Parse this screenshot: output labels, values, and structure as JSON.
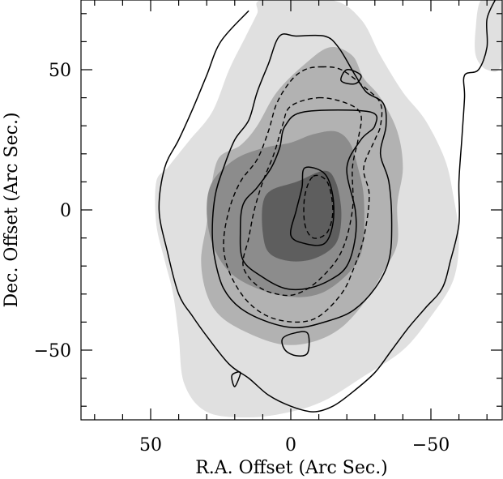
{
  "chart_data": {
    "type": "contour",
    "xlabel": "R.A. Offset (Arc Sec.)",
    "ylabel": "Dec. Offset (Arc Sec.)",
    "xlim": [
      75,
      -75
    ],
    "ylim": [
      -75,
      75
    ],
    "x_reversed": true,
    "x_ticks": [
      50,
      0,
      -50
    ],
    "x_tick_labels": [
      "50",
      "0",
      "−50"
    ],
    "y_ticks": [
      50,
      0,
      -50
    ],
    "y_tick_labels": [
      "50",
      "0",
      "−50"
    ],
    "grid": false,
    "colors": {
      "fill_level_1": "#e0e0e0",
      "fill_level_2": "#b2b2b2",
      "fill_level_3": "#8c8c8c",
      "fill_level_4": "#5e5e5e",
      "line": "#000000"
    },
    "filled_contours": [
      {
        "level": 1,
        "points": [
          [
            -14,
            75
          ],
          [
            -25,
            68
          ],
          [
            -32,
            55
          ],
          [
            -40,
            42
          ],
          [
            -48,
            32
          ],
          [
            -55,
            18
          ],
          [
            -58,
            5
          ],
          [
            -60,
            -10
          ],
          [
            -58,
            -25
          ],
          [
            -50,
            -38
          ],
          [
            -40,
            -50
          ],
          [
            -25,
            -60
          ],
          [
            -12,
            -68
          ],
          [
            0,
            -72
          ],
          [
            15,
            -74
          ],
          [
            30,
            -72
          ],
          [
            38,
            -62
          ],
          [
            40,
            -45
          ],
          [
            42,
            -30
          ],
          [
            45,
            -18
          ],
          [
            48,
            -5
          ],
          [
            48,
            10
          ],
          [
            44,
            15
          ],
          [
            40,
            20
          ],
          [
            36,
            25
          ],
          [
            28,
            35
          ],
          [
            22,
            50
          ],
          [
            16,
            62
          ],
          [
            12,
            70
          ],
          [
            10,
            75
          ]
        ],
        "note_x_max_visible": true
      },
      {
        "level": 1,
        "points": [
          [
            -68,
            75
          ],
          [
            -75,
            75
          ],
          [
            -75,
            52
          ],
          [
            -70,
            50
          ],
          [
            -66,
            55
          ],
          [
            -66,
            65
          ]
        ]
      },
      {
        "level": 2,
        "points": [
          [
            -14,
            58
          ],
          [
            -22,
            55
          ],
          [
            -26,
            47
          ],
          [
            -32,
            40
          ],
          [
            -38,
            28
          ],
          [
            -40,
            15
          ],
          [
            -38,
            2
          ],
          [
            -38,
            -12
          ],
          [
            -33,
            -22
          ],
          [
            -27,
            -32
          ],
          [
            -18,
            -42
          ],
          [
            -8,
            -47
          ],
          [
            3,
            -48
          ],
          [
            15,
            -44
          ],
          [
            25,
            -38
          ],
          [
            30,
            -30
          ],
          [
            32,
            -18
          ],
          [
            30,
            -5
          ],
          [
            29,
            3
          ],
          [
            26,
            18
          ],
          [
            18,
            23
          ],
          [
            12,
            30
          ],
          [
            5,
            42
          ],
          [
            -5,
            52
          ]
        ]
      },
      {
        "level": 3,
        "points": [
          [
            -16,
            28
          ],
          [
            -21,
            24
          ],
          [
            -24,
            15
          ],
          [
            -26,
            5
          ],
          [
            -26,
            -10
          ],
          [
            -24,
            -18
          ],
          [
            -18,
            -25
          ],
          [
            -10,
            -30
          ],
          [
            0,
            -31
          ],
          [
            12,
            -28
          ],
          [
            22,
            -22
          ],
          [
            28,
            -12
          ],
          [
            30,
            0
          ],
          [
            28,
            10
          ],
          [
            20,
            18
          ],
          [
            10,
            22
          ],
          [
            0,
            24
          ],
          [
            -8,
            27
          ]
        ]
      },
      {
        "level": 4,
        "points": [
          [
            -12,
            14
          ],
          [
            -16,
            10
          ],
          [
            -18,
            0
          ],
          [
            -17,
            -10
          ],
          [
            -13,
            -15
          ],
          [
            -6,
            -18
          ],
          [
            2,
            -18
          ],
          [
            8,
            -15
          ],
          [
            10,
            -8
          ],
          [
            10,
            2
          ],
          [
            7,
            7
          ],
          [
            -2,
            10
          ]
        ]
      }
    ],
    "solid_contours": [
      [
        [
          15,
          71
        ],
        [
          25,
          60
        ],
        [
          30,
          48
        ],
        [
          35,
          36
        ],
        [
          40,
          25
        ],
        [
          45,
          15
        ],
        [
          47,
          0
        ],
        [
          44,
          -15
        ],
        [
          40,
          -30
        ],
        [
          35,
          -38
        ],
        [
          30,
          -45
        ],
        [
          22,
          -55
        ],
        [
          15,
          -60
        ],
        [
          8,
          -66
        ],
        [
          0,
          -70
        ],
        [
          -8,
          -72
        ],
        [
          -15,
          -70
        ],
        [
          -22,
          -65
        ],
        [
          -30,
          -58
        ],
        [
          -36,
          -50
        ],
        [
          -42,
          -42
        ],
        [
          -48,
          -35
        ],
        [
          -54,
          -28
        ],
        [
          -57,
          -18
        ],
        [
          -60,
          -5
        ],
        [
          -60,
          10
        ],
        [
          -61,
          25
        ],
        [
          -62,
          40
        ],
        [
          -62,
          48
        ],
        [
          -67,
          50
        ],
        [
          -70,
          58
        ],
        [
          -70,
          68
        ],
        [
          -73,
          75
        ]
      ],
      [
        [
          -2,
          62
        ],
        [
          -12,
          62
        ],
        [
          -17,
          58
        ],
        [
          -23,
          48
        ],
        [
          -27,
          42
        ],
        [
          -33,
          38
        ],
        [
          -34,
          30
        ],
        [
          -32,
          20
        ],
        [
          -35,
          10
        ],
        [
          -36,
          -5
        ],
        [
          -35,
          -18
        ],
        [
          -30,
          -28
        ],
        [
          -22,
          -36
        ],
        [
          -12,
          -40
        ],
        [
          -2,
          -42
        ],
        [
          8,
          -40
        ],
        [
          18,
          -35
        ],
        [
          24,
          -28
        ],
        [
          27,
          -18
        ],
        [
          28,
          -8
        ],
        [
          27,
          5
        ],
        [
          24,
          15
        ],
        [
          20,
          25
        ],
        [
          15,
          32
        ],
        [
          12,
          42
        ],
        [
          8,
          52
        ],
        [
          4,
          62
        ]
      ],
      [
        [
          -5,
          35
        ],
        [
          -28,
          35
        ],
        [
          -30,
          30
        ],
        [
          -25,
          25
        ],
        [
          -20,
          15
        ],
        [
          -23,
          0
        ],
        [
          -23,
          -10
        ],
        [
          -20,
          -20
        ],
        [
          -14,
          -25
        ],
        [
          -6,
          -28
        ],
        [
          2,
          -28
        ],
        [
          10,
          -24
        ],
        [
          17,
          -18
        ],
        [
          18,
          -8
        ],
        [
          17,
          2
        ],
        [
          12,
          8
        ],
        [
          7,
          15
        ],
        [
          4,
          22
        ],
        [
          2,
          30
        ]
      ],
      [
        [
          -5,
          15
        ],
        [
          -12,
          13
        ],
        [
          -15,
          5
        ],
        [
          -15,
          -5
        ],
        [
          -12,
          -12
        ],
        [
          -5,
          -12
        ],
        [
          0,
          -9
        ],
        [
          -2,
          0
        ],
        [
          -4,
          8
        ]
      ],
      [
        [
          -20,
          50
        ],
        [
          -25,
          48
        ],
        [
          -23,
          45
        ],
        [
          -18,
          46
        ]
      ],
      [
        [
          -1,
          -44
        ],
        [
          -6,
          -44
        ],
        [
          -6,
          -51
        ],
        [
          -2,
          -52
        ],
        [
          2,
          -50
        ],
        [
          3,
          -46
        ]
      ],
      [
        [
          21,
          -59
        ],
        [
          18,
          -58
        ],
        [
          20,
          -63
        ]
      ]
    ],
    "dashed_contours": [
      [
        [
          -11,
          51
        ],
        [
          -18,
          50
        ],
        [
          -26,
          44
        ],
        [
          -32,
          38
        ],
        [
          -32,
          30
        ],
        [
          -30,
          25
        ],
        [
          -26,
          15
        ],
        [
          -28,
          5
        ],
        [
          -26,
          -10
        ],
        [
          -22,
          -22
        ],
        [
          -18,
          -30
        ],
        [
          -10,
          -38
        ],
        [
          -2,
          -40
        ],
        [
          8,
          -38
        ],
        [
          16,
          -32
        ],
        [
          22,
          -22
        ],
        [
          24,
          -12
        ],
        [
          22,
          0
        ],
        [
          18,
          10
        ],
        [
          12,
          18
        ],
        [
          8,
          28
        ],
        [
          5,
          38
        ],
        [
          0,
          46
        ],
        [
          -5,
          50
        ]
      ],
      [
        [
          -10,
          40
        ],
        [
          -20,
          38
        ],
        [
          -25,
          34
        ],
        [
          -24,
          25
        ],
        [
          -22,
          15
        ],
        [
          -22,
          0
        ],
        [
          -18,
          -15
        ],
        [
          -10,
          -25
        ],
        [
          -2,
          -30
        ],
        [
          5,
          -30
        ],
        [
          12,
          -27
        ],
        [
          17,
          -20
        ],
        [
          15,
          -10
        ],
        [
          13,
          0
        ],
        [
          10,
          10
        ],
        [
          6,
          20
        ],
        [
          3,
          30
        ],
        [
          0,
          37
        ]
      ],
      [
        [
          -8,
          12
        ],
        [
          -13,
          10
        ],
        [
          -15,
          0
        ],
        [
          -13,
          -8
        ],
        [
          -8,
          -10
        ],
        [
          -5,
          -5
        ],
        [
          -5,
          5
        ]
      ]
    ]
  }
}
